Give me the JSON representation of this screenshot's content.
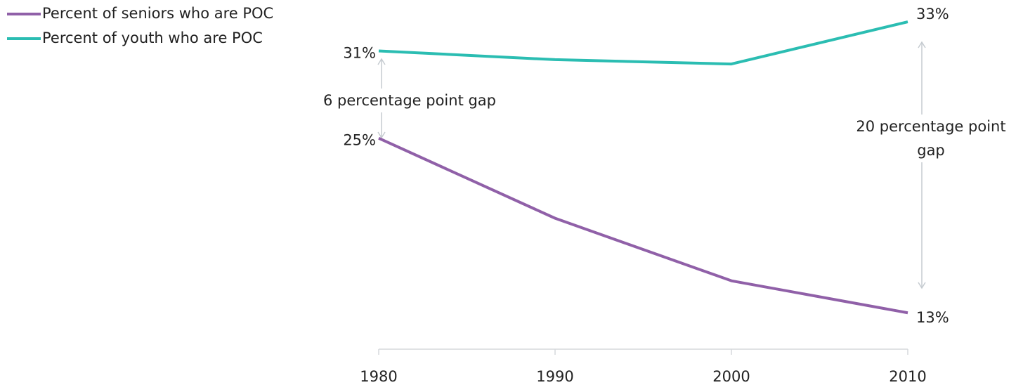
{
  "chart_data": {
    "type": "line",
    "x": [
      1980,
      1990,
      2000,
      2010
    ],
    "xlim": [
      1980,
      2010
    ],
    "ylim": [
      10.5,
      34.5
    ],
    "series": [
      {
        "name": "Percent of seniors who are POC",
        "color": "#9060a8",
        "values": [
          25,
          19.5,
          15.2,
          13
        ],
        "value_labels": [
          "25%",
          null,
          null,
          "13%"
        ]
      },
      {
        "name": "Percent of youth who are POC",
        "color": "#2bbdb2",
        "values": [
          31,
          30.4,
          30.1,
          33
        ],
        "value_labels": [
          "31%",
          null,
          null,
          "33%"
        ]
      }
    ],
    "annotations": [
      "6 percentage point gap",
      "20 percentage point gap"
    ]
  }
}
